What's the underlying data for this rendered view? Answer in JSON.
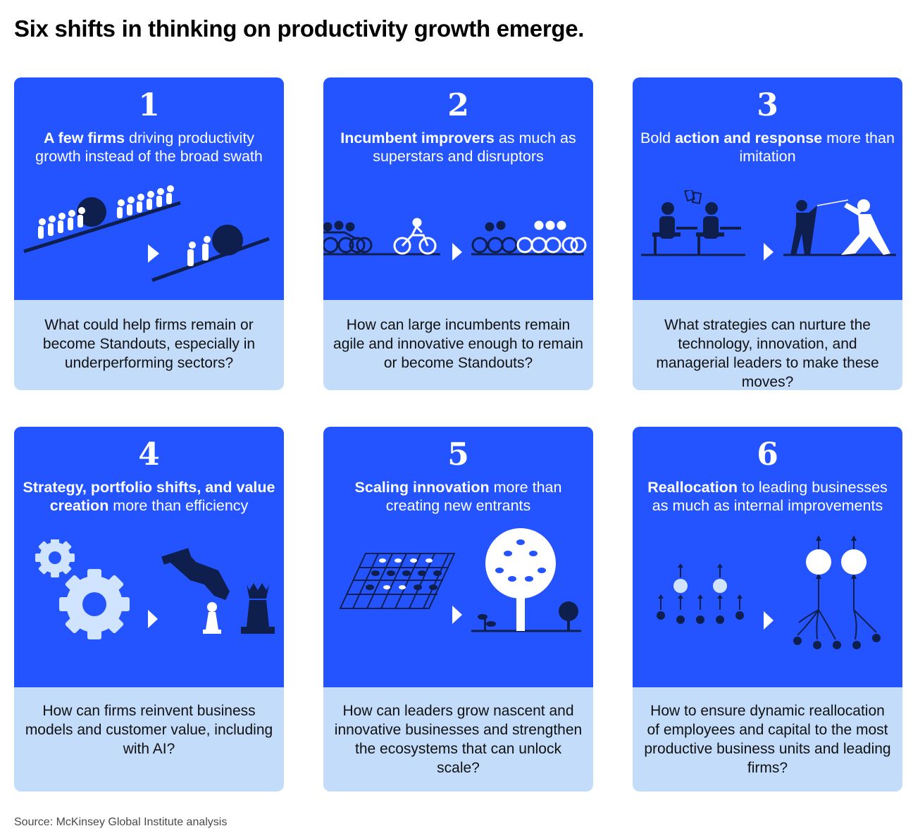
{
  "title": "Six shifts in thinking on productivity growth emerge.",
  "source": "Source: McKinsey Global Institute analysis",
  "colors": {
    "card_blue": "#2454ff",
    "card_light": "#c3dcfa",
    "navy": "#0f1f4d",
    "white": "#ffffff"
  },
  "cards": [
    {
      "number": "1",
      "head_bold": "A few firms",
      "head_rest": " driving productivity growth instead of the broad swath",
      "question": "What could help firms remain or become Standouts, especially in underperforming sectors?",
      "icons": [
        "people-pushing-boulder-icon",
        "pair-pushing-boulder-icon"
      ]
    },
    {
      "number": "2",
      "head_bold": "Incumbent improvers",
      "head_rest": " as much as superstars and disruptors",
      "question": "How can large incumbents remain agile and innovative enough to remain or become Standouts?",
      "icons": [
        "cyclists-peloton-icon",
        "cyclist-icon",
        "peloton-with-leaders-icon"
      ]
    },
    {
      "number": "3",
      "head_pre": "Bold ",
      "head_bold": "action and response",
      "head_rest": " more than imitation",
      "question": "What strategies can nurture the technology, innovation, and managerial leaders to make these moves?",
      "icons": [
        "students-copying-icon",
        "fencers-icon"
      ]
    },
    {
      "number": "4",
      "head_bold": "Strategy, portfolio shifts, and value creation",
      "head_rest": " more than efficiency",
      "question": "How can firms reinvent business models and customer value, including with AI?",
      "icons": [
        "gears-icon",
        "hand-moving-chess-piece-icon"
      ]
    },
    {
      "number": "5",
      "head_bold": "Scaling innovation",
      "head_rest": " more than creating new entrants",
      "question": "How can leaders grow nascent and innovative businesses and strengthen the ecosystems that can unlock scale?",
      "icons": [
        "seedling-plot-icon",
        "grown-tree-icon"
      ]
    },
    {
      "number": "6",
      "head_bold": "Reallocation",
      "head_rest": " to leading businesses as much as internal improvements",
      "question": "How to ensure dynamic reallocation of employees and capital to the most productive business units and leading firms?",
      "icons": [
        "small-units-growing-icon",
        "merged-units-growing-icon"
      ]
    }
  ]
}
